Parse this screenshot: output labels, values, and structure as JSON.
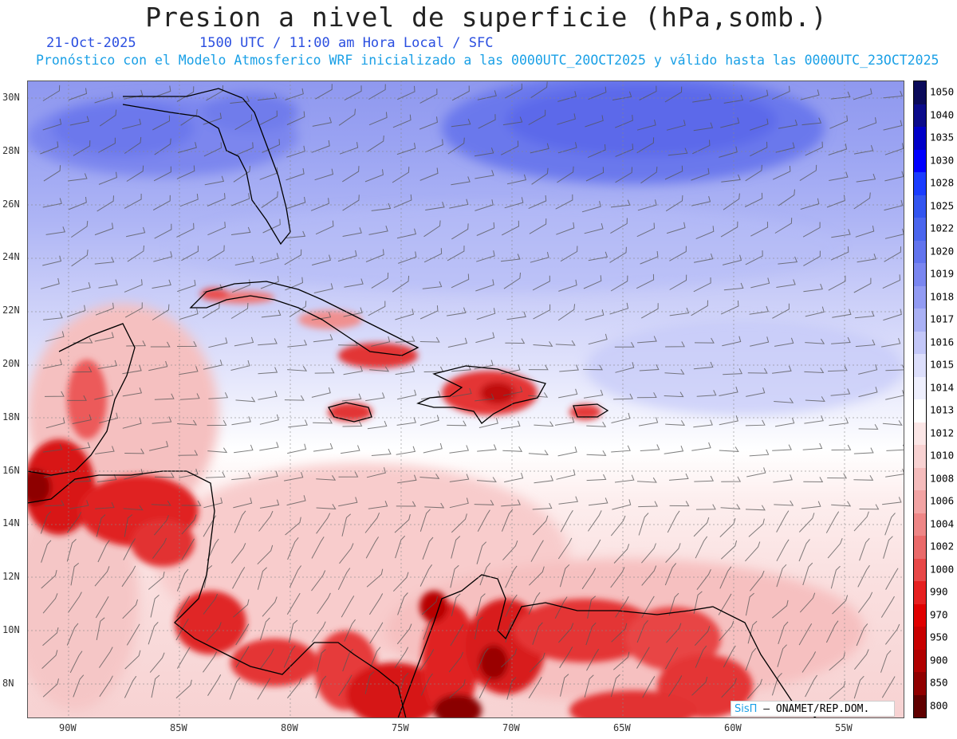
{
  "header": {
    "title": "Presion a nivel de superficie (hPa,somb.)",
    "date": "21-Oct-2025",
    "time": "1500 UTC / 11:00 am Hora Local / SFC",
    "forecast_line": "Pronóstico con el Modelo Atmosferico WRF inicializado a las 0000UTC_20OCT2025 y válido hasta las  0000UTC_23OCT2025"
  },
  "axes": {
    "lon_labels": [
      "90W",
      "85W",
      "80W",
      "75W",
      "70W",
      "65W",
      "60W",
      "55W"
    ],
    "lat_labels": [
      "30N",
      "28N",
      "26N",
      "24N",
      "22N",
      "20N",
      "18N",
      "16N",
      "14N",
      "12N",
      "10N",
      "8N"
    ]
  },
  "colorbar": {
    "levels": [
      {
        "label": "1050",
        "color": "#0a0a5a"
      },
      {
        "label": "1040",
        "color": "#0b0b8a"
      },
      {
        "label": "1035",
        "color": "#0000c8"
      },
      {
        "label": "1030",
        "color": "#0000ff"
      },
      {
        "label": "1028",
        "color": "#1a3cff"
      },
      {
        "label": "1025",
        "color": "#3355f0"
      },
      {
        "label": "1022",
        "color": "#4b66ee"
      },
      {
        "label": "1020",
        "color": "#6274ee"
      },
      {
        "label": "1019",
        "color": "#7a86f0"
      },
      {
        "label": "1018",
        "color": "#929bf3"
      },
      {
        "label": "1017",
        "color": "#aab1f5"
      },
      {
        "label": "1016",
        "color": "#c3c7f8"
      },
      {
        "label": "1015",
        "color": "#dcdefb"
      },
      {
        "label": "1014",
        "color": "#eeeffd"
      },
      {
        "label": "1013",
        "color": "#ffffff"
      },
      {
        "label": "1012",
        "color": "#fbe6e6"
      },
      {
        "label": "1010",
        "color": "#f8d2d2"
      },
      {
        "label": "1008",
        "color": "#f5bcbc"
      },
      {
        "label": "1006",
        "color": "#f2a3a3"
      },
      {
        "label": "1004",
        "color": "#ee8686"
      },
      {
        "label": "1002",
        "color": "#ea6a6a"
      },
      {
        "label": "1000",
        "color": "#e84848"
      },
      {
        "label": "990",
        "color": "#e62020"
      },
      {
        "label": "970",
        "color": "#e00000"
      },
      {
        "label": "950",
        "color": "#c80000"
      },
      {
        "label": "900",
        "color": "#b00000"
      },
      {
        "label": "850",
        "color": "#900000"
      },
      {
        "label": "800",
        "color": "#600000"
      }
    ]
  },
  "credit": {
    "brand": "SisΠ",
    "text": "– ONAMET/REP.DOM."
  }
}
